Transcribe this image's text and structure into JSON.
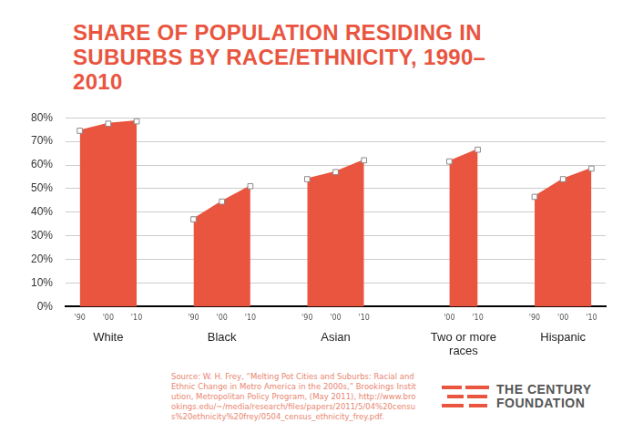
{
  "chart_data": {
    "type": "area",
    "title": "SHARE OF POPULATION RESIDING IN SUBURBS BY RACE/ETHNICITY, 1990–2010",
    "categories": [
      "'90",
      "'00",
      "'10",
      null,
      "'90",
      "'00",
      "'10",
      null,
      "'90",
      "'00",
      "'10",
      null,
      null,
      "'00",
      "'10",
      null,
      "'90",
      "'00",
      "'10"
    ],
    "series": [
      {
        "name": "White",
        "color": "#e9553f",
        "values": [
          74.5,
          77.5,
          78.5,
          null,
          null,
          null,
          null,
          null,
          null,
          null,
          null,
          null,
          null,
          null,
          null,
          null,
          null,
          null,
          null
        ]
      },
      {
        "name": "Black",
        "color": "#e9553f",
        "values": [
          null,
          null,
          null,
          null,
          37,
          44.5,
          51,
          null,
          null,
          null,
          null,
          null,
          null,
          null,
          null,
          null,
          null,
          null,
          null
        ]
      },
      {
        "name": "Asian",
        "color": "#e9553f",
        "values": [
          null,
          null,
          null,
          null,
          null,
          null,
          null,
          null,
          54,
          57,
          62,
          null,
          null,
          null,
          null,
          null,
          null,
          null,
          null
        ]
      },
      {
        "name": "Two or more races",
        "color": "#e9553f",
        "values": [
          null,
          null,
          null,
          null,
          null,
          null,
          null,
          null,
          null,
          null,
          null,
          null,
          null,
          61.5,
          66.5,
          null,
          null,
          null,
          null
        ]
      },
      {
        "name": "Hispanic",
        "color": "#e9553f",
        "values": [
          null,
          null,
          null,
          null,
          null,
          null,
          null,
          null,
          null,
          null,
          null,
          null,
          null,
          null,
          null,
          null,
          46.5,
          54,
          58.5
        ]
      }
    ],
    "ylim": [
      0,
      80
    ],
    "yticks": [
      {
        "value": 0,
        "label": "0%"
      },
      {
        "value": 10,
        "label": "10%"
      },
      {
        "value": 20,
        "label": "20%"
      },
      {
        "value": 30,
        "label": "30%"
      },
      {
        "value": 40,
        "label": "40%"
      },
      {
        "value": 50,
        "label": "50%"
      },
      {
        "value": 60,
        "label": "60%"
      },
      {
        "value": 70,
        "label": "70%"
      },
      {
        "value": 80,
        "label": "80%"
      }
    ],
    "grid": true,
    "marker": "square"
  },
  "source": "Source: W. H. Frey, “Melting Pot Cities and Suburbs: Racial and Ethnic Change in Metro America in the 2000s,” Brookings Institution, Metropolitan Policy Program, (May 2011), http://www.brookings.edu/~/media/research/files/papers/2011/5/04%20census%20ethnicity%20frey/0504_census_ethnicity_frey.pdf.",
  "logo": [
    "THE CENTURY",
    "FOUNDATION"
  ]
}
